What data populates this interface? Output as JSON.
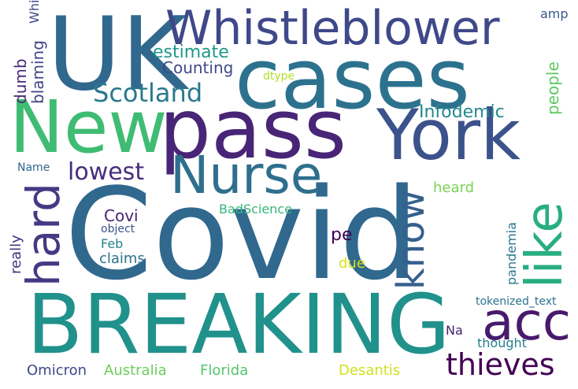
{
  "words": [
    {
      "text": "Covid",
      "color": "#30688e"
    },
    {
      "text": "BREAKING",
      "color": "#21918c"
    },
    {
      "text": "UK",
      "color": "#31688e"
    },
    {
      "text": "cases",
      "color": "#2c728e"
    },
    {
      "text": "pass",
      "color": "#482576"
    },
    {
      "text": "New",
      "color": "#3fbc73"
    },
    {
      "text": "York",
      "color": "#3b528b"
    },
    {
      "text": "Whistleblower",
      "color": "#3f4889"
    },
    {
      "text": "Nurse",
      "color": "#2e6f8e"
    },
    {
      "text": "acc",
      "color": "#481a6c"
    },
    {
      "text": "like",
      "color": "#28ae80"
    },
    {
      "text": "hard",
      "color": "#443983"
    },
    {
      "text": "know",
      "color": "#355f8d"
    },
    {
      "text": "thieves",
      "color": "#440154"
    },
    {
      "text": "Scotland",
      "color": "#2a788e"
    },
    {
      "text": "lowest",
      "color": "#472d7b"
    },
    {
      "text": "Infodemic",
      "color": "#23898e"
    },
    {
      "text": "estimate",
      "color": "#1f988b"
    },
    {
      "text": "Counting",
      "color": "#3e4989"
    },
    {
      "text": "dumb",
      "color": "#482878"
    },
    {
      "text": "blaming",
      "color": "#414487"
    },
    {
      "text": "people",
      "color": "#5ec962"
    },
    {
      "text": "amp",
      "color": "#38588c"
    },
    {
      "text": "dtype",
      "color": "#b5de2b"
    },
    {
      "text": "Name",
      "color": "#31688e"
    },
    {
      "text": "heard",
      "color": "#7ad151"
    },
    {
      "text": "BadScience",
      "color": "#35b779"
    },
    {
      "text": "Covi",
      "color": "#482475"
    },
    {
      "text": "object",
      "color": "#3b528b"
    },
    {
      "text": "really",
      "color": "#472f7d"
    },
    {
      "text": "Feb",
      "color": "#26828e"
    },
    {
      "text": "claims",
      "color": "#2c738e"
    },
    {
      "text": "pe",
      "color": "#440154"
    },
    {
      "text": "due",
      "color": "#d8e219"
    },
    {
      "text": "pandemia",
      "color": "#2a788e"
    },
    {
      "text": "tokenized_text",
      "color": "#2c728e"
    },
    {
      "text": "Na",
      "color": "#481f70"
    },
    {
      "text": "thought",
      "color": "#277f8e"
    },
    {
      "text": "Omicron",
      "color": "#3e4989"
    },
    {
      "text": "Australia",
      "color": "#6ccd5a"
    },
    {
      "text": "Florida",
      "color": "#52c569"
    },
    {
      "text": "Desantis",
      "color": "#d0e11c"
    },
    {
      "text": "Whistleblower",
      "color": "#3f4889"
    }
  ]
}
